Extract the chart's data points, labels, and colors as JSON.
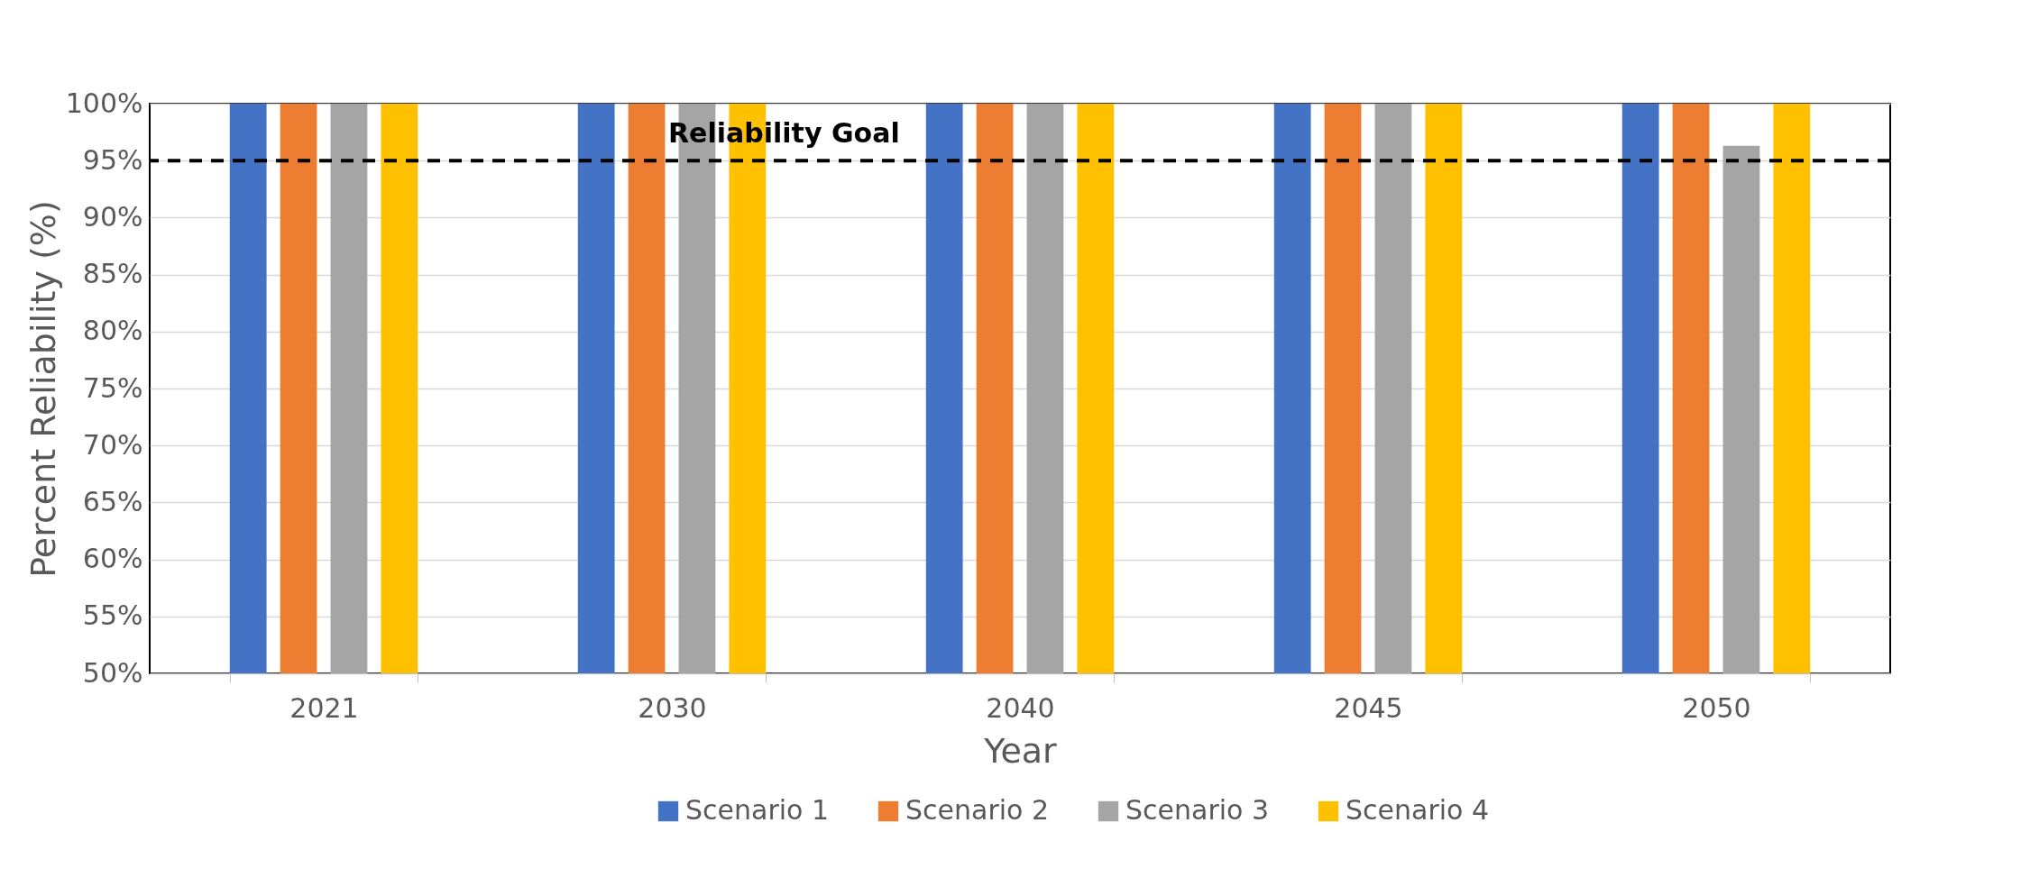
{
  "chart_data": {
    "type": "bar",
    "xlabel": "Year",
    "ylabel": "Percent Reliability (%)",
    "categories": [
      "2021",
      "2030",
      "2040",
      "2045",
      "2050"
    ],
    "series": [
      {
        "name": "Scenario 1",
        "color": "#4472c4",
        "values": [
          100,
          100,
          100,
          100,
          100
        ]
      },
      {
        "name": "Scenario 2",
        "color": "#ed7d31",
        "values": [
          100,
          100,
          100,
          100,
          100
        ]
      },
      {
        "name": "Scenario 3",
        "color": "#a5a5a5",
        "values": [
          100,
          100,
          100,
          100,
          96.3
        ]
      },
      {
        "name": "Scenario 4",
        "color": "#ffc000",
        "values": [
          100,
          100,
          100,
          100,
          100
        ]
      }
    ],
    "ylim": [
      50,
      100
    ],
    "yticks": [
      {
        "value": 50,
        "label": "50%"
      },
      {
        "value": 55,
        "label": "55%"
      },
      {
        "value": 60,
        "label": "60%"
      },
      {
        "value": 65,
        "label": "65%"
      },
      {
        "value": 70,
        "label": "70%"
      },
      {
        "value": 75,
        "label": "75%"
      },
      {
        "value": 80,
        "label": "80%"
      },
      {
        "value": 85,
        "label": "85%"
      },
      {
        "value": 90,
        "label": "90%"
      },
      {
        "value": 95,
        "label": "95%"
      },
      {
        "value": 100,
        "label": "100%"
      }
    ],
    "ref_lines": [
      {
        "axis": "y",
        "value": 95,
        "label": "Reliability Goal",
        "color": "#000000",
        "line_style": "dashed"
      }
    ],
    "grid": "y",
    "legend": "bottom"
  }
}
